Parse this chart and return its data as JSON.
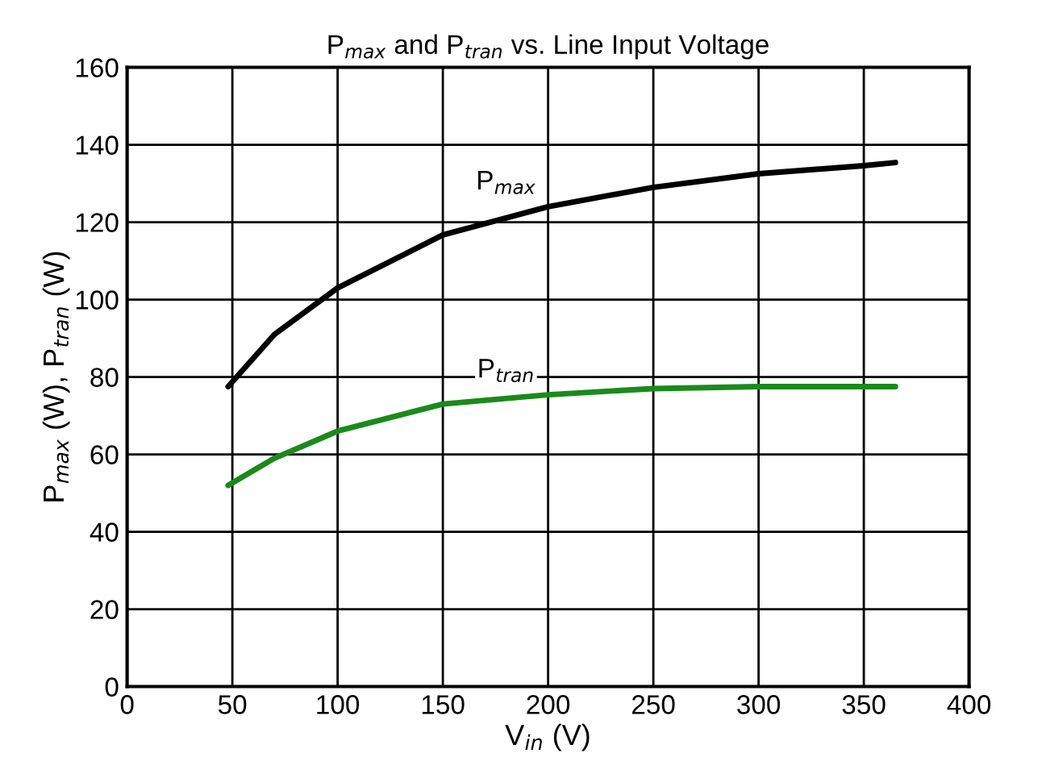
{
  "chart_data": {
    "type": "line",
    "title": "P$_{max}$ and P$_{tran}$ vs. Line Input Voltage",
    "xlabel": "V$_{in}$ (V)",
    "ylabel": "P$_{max}$ (W), P$_{tran}$ (W)",
    "xlim": [
      0,
      400
    ],
    "xticks": [
      0,
      50,
      100,
      150,
      200,
      250,
      300,
      350,
      400
    ],
    "ylim": [
      0,
      160
    ],
    "yticks": [
      0,
      20,
      40,
      60,
      80,
      100,
      120,
      140,
      160
    ],
    "grid": true,
    "series": [
      {
        "name": "P$_{max}$",
        "color": "#000000",
        "x": [
          48,
          70,
          100,
          150,
          200,
          250,
          300,
          350,
          365
        ],
        "values": [
          77.5,
          91,
          103,
          116.7,
          124,
          129,
          132.5,
          134.6,
          135.4
        ]
      },
      {
        "name": "P$_{tran}$",
        "color": "#1a8a1a",
        "x": [
          48,
          70,
          100,
          150,
          200,
          250,
          300,
          350,
          365
        ],
        "values": [
          52,
          59,
          66,
          73,
          75.4,
          77,
          77.5,
          77.5,
          77.5
        ]
      }
    ]
  }
}
